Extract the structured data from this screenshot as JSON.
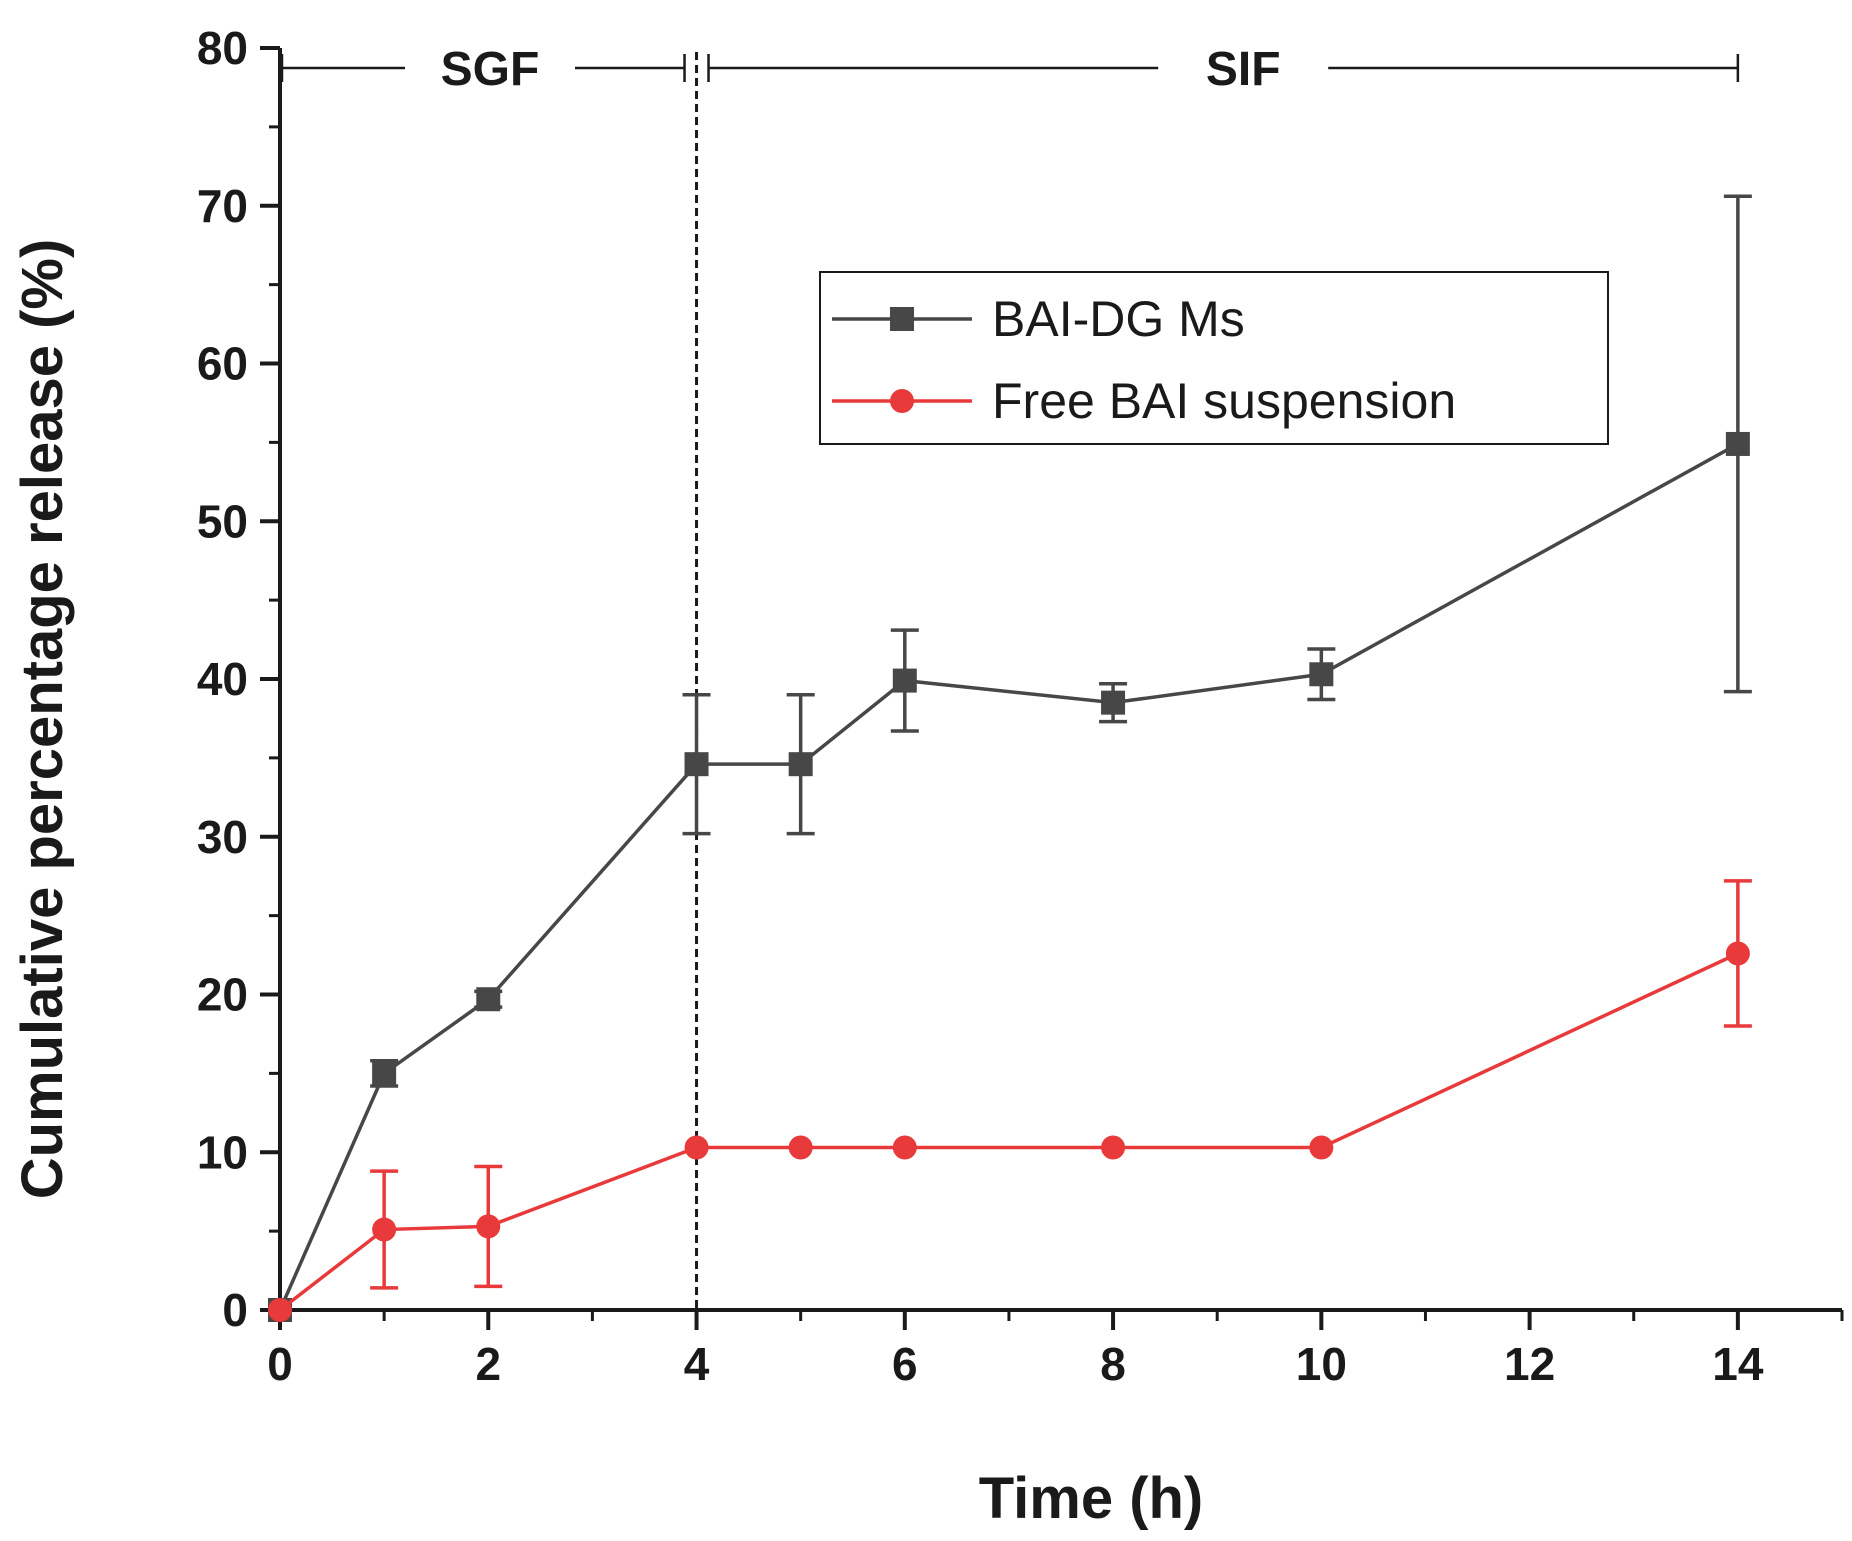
{
  "chart_data": {
    "type": "line",
    "xlabel": "Time (h)",
    "ylabel": "Cumulative percentage release (%)",
    "xlim": [
      0,
      15
    ],
    "ylim": [
      0,
      80
    ],
    "xticks": [
      0,
      2,
      4,
      6,
      8,
      10,
      12,
      14
    ],
    "yticks": [
      0,
      10,
      20,
      30,
      40,
      50,
      60,
      70,
      80
    ],
    "phases": [
      {
        "label": "SGF",
        "start": 0,
        "end": 4
      },
      {
        "label": "SIF",
        "start": 4,
        "end": 14
      }
    ],
    "divider_x": 4,
    "legend_position": "upper-right",
    "series": [
      {
        "name": "BAI-DG Ms",
        "color": "#474747",
        "marker": "square",
        "x": [
          0,
          1,
          2,
          4,
          5,
          6,
          8,
          10,
          14
        ],
        "values": [
          0,
          15.0,
          19.7,
          34.6,
          34.6,
          39.9,
          38.5,
          40.3,
          54.9
        ],
        "errors": [
          0,
          0.8,
          0.5,
          4.4,
          4.4,
          3.2,
          1.2,
          1.6,
          15.7
        ]
      },
      {
        "name": "Free BAI suspension",
        "color": "#e8393b",
        "marker": "circle",
        "x": [
          0,
          1,
          2,
          4,
          5,
          6,
          8,
          10,
          14
        ],
        "values": [
          0,
          5.1,
          5.3,
          10.3,
          10.3,
          10.3,
          10.3,
          10.3,
          22.6
        ],
        "errors": [
          0,
          3.7,
          3.8,
          0,
          0,
          0,
          0,
          0,
          4.6
        ]
      }
    ]
  }
}
